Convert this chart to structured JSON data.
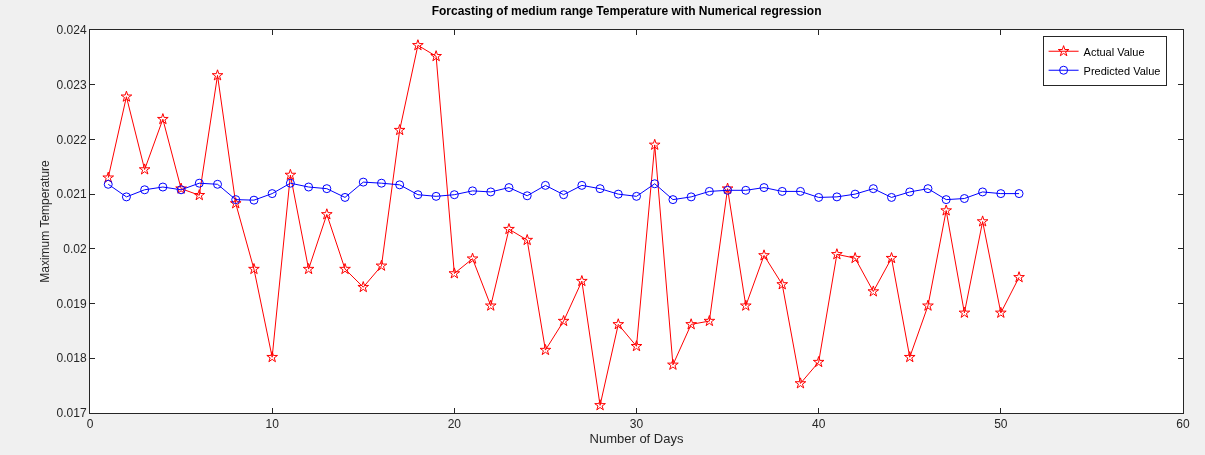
{
  "chart_data": {
    "type": "line",
    "title": "Forcasting of medium range Temperature with Numerical regression",
    "xlabel": "Number of Days",
    "ylabel": "Maximum Temperature",
    "x": [
      1,
      2,
      3,
      4,
      5,
      6,
      7,
      8,
      9,
      10,
      11,
      12,
      13,
      14,
      15,
      16,
      17,
      18,
      19,
      20,
      21,
      22,
      23,
      24,
      25,
      26,
      27,
      28,
      29,
      30,
      31,
      32,
      33,
      34,
      35,
      36,
      37,
      38,
      39,
      40,
      41,
      42,
      43,
      44,
      45,
      46,
      47,
      48,
      49,
      50,
      51
    ],
    "series": [
      {
        "name": "Actual Value",
        "color": "#ff0000",
        "marker": "star",
        "values": [
          0.0213,
          0.02278,
          0.02145,
          0.02237,
          0.0211,
          0.02098,
          0.02317,
          0.02083,
          0.01963,
          0.01802,
          0.02135,
          0.01963,
          0.02063,
          0.01963,
          0.0193,
          0.01969,
          0.02217,
          0.02372,
          0.02352,
          0.01955,
          0.01982,
          0.01896,
          0.02036,
          0.02016,
          0.01815,
          0.01868,
          0.01941,
          0.01714,
          0.01862,
          0.01822,
          0.0219,
          0.01788,
          0.01862,
          0.01868,
          0.0211,
          0.01896,
          0.01988,
          0.01935,
          0.01754,
          0.01793,
          0.0199,
          0.01983,
          0.01922,
          0.01983,
          0.01802,
          0.01896,
          0.0207,
          0.01883,
          0.0205,
          0.01883,
          0.01948
        ]
      },
      {
        "name": "Predicted Value",
        "color": "#0000ff",
        "marker": "circle",
        "values": [
          0.02118,
          0.02095,
          0.02108,
          0.02113,
          0.02108,
          0.0212,
          0.02118,
          0.0209,
          0.02089,
          0.02101,
          0.0212,
          0.02113,
          0.0211,
          0.02094,
          0.02122,
          0.0212,
          0.02117,
          0.02099,
          0.02096,
          0.02099,
          0.02106,
          0.02104,
          0.02112,
          0.02097,
          0.02116,
          0.02099,
          0.02116,
          0.0211,
          0.021,
          0.02096,
          0.02119,
          0.0209,
          0.02095,
          0.02105,
          0.02107,
          0.02107,
          0.02112,
          0.02105,
          0.02105,
          0.02094,
          0.02095,
          0.021,
          0.0211,
          0.02094,
          0.02104,
          0.0211,
          0.0209,
          0.02092,
          0.02104,
          0.02101,
          0.02101
        ]
      }
    ],
    "xlim": [
      0,
      60
    ],
    "xticks": [
      0,
      10,
      20,
      30,
      40,
      50,
      60
    ],
    "ylim": [
      0.017,
      0.024
    ],
    "yticks": [
      0.017,
      0.018,
      0.019,
      0.02,
      0.021,
      0.022,
      0.023,
      0.024
    ],
    "grid": false,
    "legend": "top right",
    "line_style": "solid"
  }
}
